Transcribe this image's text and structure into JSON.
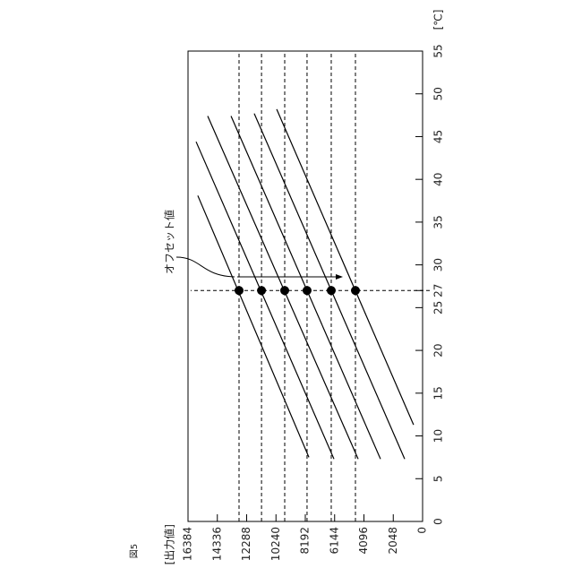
{
  "figure_label": "図5",
  "chart_data": {
    "type": "line",
    "ylabel": "[出力値]",
    "xlabel": "[℃]",
    "annotation": "オフセット値",
    "xlim": [
      0,
      55
    ],
    "xticks": [
      0,
      5,
      10,
      15,
      20,
      25,
      27,
      30,
      35,
      40,
      45,
      50,
      55
    ],
    "ylim": [
      0,
      16384
    ],
    "yticks": [
      0,
      2048,
      4096,
      6144,
      8192,
      10240,
      12288,
      14336,
      16384
    ],
    "series": [
      {
        "color": "#000000",
        "x": [
          38.1,
          7.5
        ],
        "values": [
          15700,
          7940
        ]
      },
      {
        "color": "#000000",
        "x": [
          44.4,
          7.3
        ],
        "values": [
          15820,
          6190
        ]
      },
      {
        "color": "#000000",
        "x": [
          47.4,
          7.3
        ],
        "values": [
          15010,
          4500
        ]
      },
      {
        "color": "#000000",
        "x": [
          47.4,
          7.3
        ],
        "values": [
          13380,
          2940
        ]
      },
      {
        "color": "#000000",
        "x": [
          47.7,
          7.3
        ],
        "values": [
          11760,
          1250
        ]
      },
      {
        "color": "#000000",
        "x": [
          48.2,
          11.3
        ],
        "values": [
          10190,
          630
        ]
      }
    ],
    "markers": {
      "color": "#000000",
      "x": [
        27,
        27,
        27,
        27,
        27,
        27
      ],
      "values": [
        12820,
        11250,
        9630,
        8070,
        6380,
        4690
      ]
    }
  }
}
